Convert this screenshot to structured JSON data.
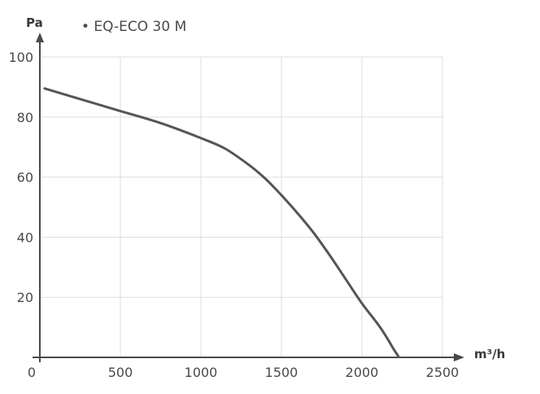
{
  "chart_data": {
    "type": "line",
    "title": "",
    "xlabel": "m³/h",
    "ylabel": "Pa",
    "xlim": [
      0,
      2500
    ],
    "ylim": [
      0,
      100
    ],
    "x_ticks": [
      0,
      500,
      1000,
      1500,
      2000,
      2500
    ],
    "y_ticks": [
      20,
      40,
      60,
      80,
      100
    ],
    "x_tick_labels": [
      "0",
      "500",
      "1000",
      "1500",
      "2000",
      "2500"
    ],
    "y_tick_labels": [
      "20",
      "40",
      "60",
      "80",
      "100"
    ],
    "grid": true,
    "legend_position": "top-left",
    "series": [
      {
        "name": "EQ-ECO  30 M",
        "legend_label": "• EQ-ECO  30 M",
        "color": "#555555",
        "x": [
          30,
          250,
          500,
          750,
          1000,
          1150,
          1300,
          1400,
          1500,
          1600,
          1700,
          1800,
          1900,
          2000,
          2100,
          2150,
          2200,
          2225
        ],
        "y": [
          89.5,
          86,
          82,
          78,
          73,
          69.5,
          64,
          59.5,
          54,
          48,
          41.5,
          34,
          26,
          18,
          11,
          7,
          2.5,
          0.5
        ]
      }
    ]
  }
}
